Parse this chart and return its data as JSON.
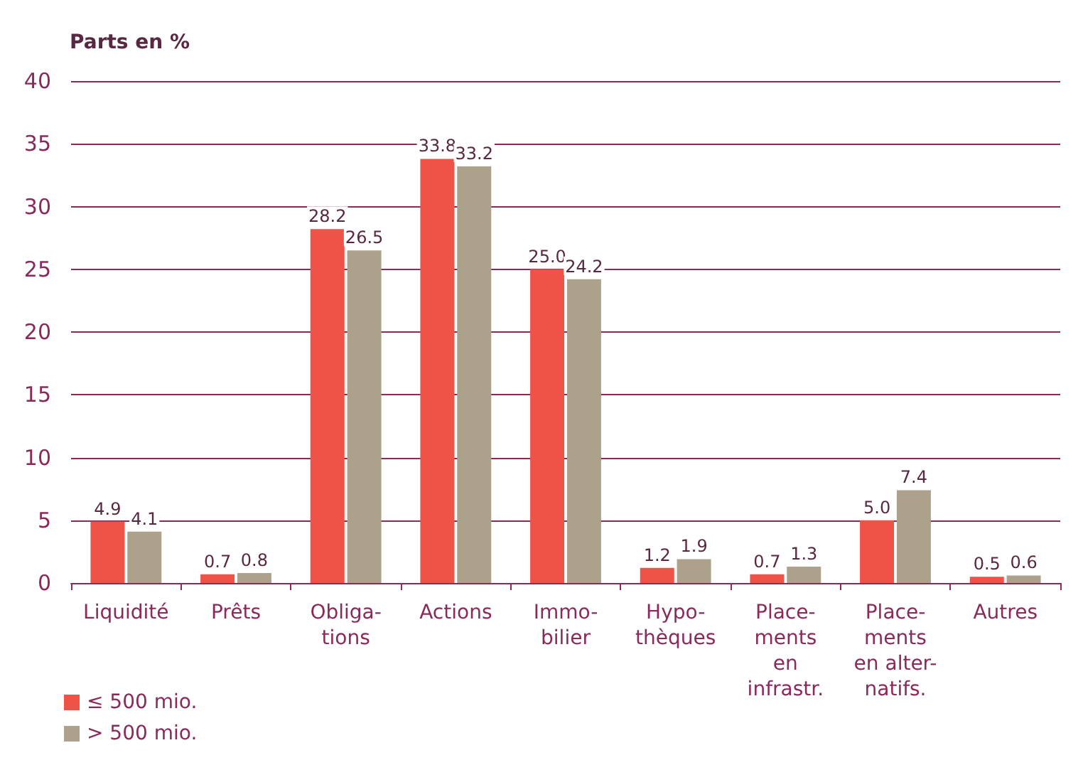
{
  "chart_data": {
    "type": "bar",
    "title": "Parts en %",
    "categories": [
      "Liquidité",
      "Prêts",
      "Obliga-\ntions",
      "Actions",
      "Immo-\nbilier",
      "Hypo-\nthèques",
      "Place-\nments\nen\ninfrastr.",
      "Place-\nments\nen alter-\nnatifs.",
      "Autres"
    ],
    "series": [
      {
        "name": "≤ 500 mio.",
        "color": "#ef5348",
        "values": [
          4.9,
          0.7,
          28.2,
          33.8,
          25.0,
          1.2,
          0.7,
          5.0,
          0.5
        ],
        "value_labels": [
          "4.9",
          "0.7",
          "28.2",
          "33.8",
          "25.0",
          "1.2",
          "0.7",
          "5.0",
          "0.5"
        ]
      },
      {
        "name": "> 500 mio.",
        "color": "#aca18b",
        "values": [
          4.1,
          0.8,
          26.5,
          33.2,
          24.2,
          1.9,
          1.3,
          7.4,
          0.6
        ],
        "value_labels": [
          "4.1",
          "0.8",
          "26.5",
          "33.2",
          "24.2",
          "1.9",
          "1.3",
          "7.4",
          "0.6"
        ]
      }
    ],
    "ylim": [
      0,
      40
    ],
    "yticks": [
      0,
      5,
      10,
      15,
      20,
      25,
      30,
      35,
      40
    ],
    "grid": "y",
    "legend": "bottom left"
  }
}
